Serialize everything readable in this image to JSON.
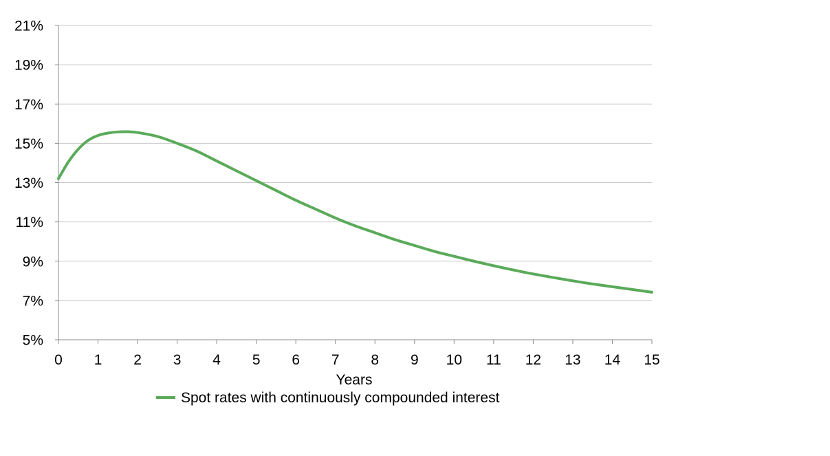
{
  "chart_data": {
    "type": "line",
    "title": "",
    "xlabel": "Years",
    "ylabel": "",
    "xlim": [
      0,
      15
    ],
    "ylim": [
      5,
      21
    ],
    "x_ticks": [
      0,
      1,
      2,
      3,
      4,
      5,
      6,
      7,
      8,
      9,
      10,
      11,
      12,
      13,
      14,
      15
    ],
    "y_ticks": [
      5,
      7,
      9,
      11,
      13,
      15,
      17,
      19,
      21
    ],
    "y_tick_labels": [
      "5%",
      "7%",
      "9%",
      "11%",
      "13%",
      "15%",
      "17%",
      "19%",
      "21%"
    ],
    "grid": "horizontal",
    "legend_position": "bottom",
    "series": [
      {
        "name": "Spot rates with continuously compounded interest",
        "color": "#5aaa5a",
        "x": [
          0,
          0.25,
          0.5,
          0.75,
          1,
          1.25,
          1.5,
          1.75,
          2,
          2.5,
          3,
          3.5,
          4,
          4.5,
          5,
          5.5,
          6,
          6.5,
          7,
          7.5,
          8,
          8.5,
          9,
          9.5,
          10,
          10.5,
          11,
          11.5,
          12,
          12.5,
          13,
          13.5,
          14,
          14.5,
          15
        ],
        "y": [
          13.2,
          14.05,
          14.7,
          15.15,
          15.4,
          15.52,
          15.58,
          15.59,
          15.55,
          15.35,
          15.0,
          14.6,
          14.1,
          13.6,
          13.1,
          12.6,
          12.1,
          11.65,
          11.2,
          10.8,
          10.45,
          10.1,
          9.8,
          9.5,
          9.25,
          9.0,
          8.77,
          8.55,
          8.35,
          8.17,
          8.0,
          7.84,
          7.7,
          7.56,
          7.42
        ]
      }
    ]
  }
}
